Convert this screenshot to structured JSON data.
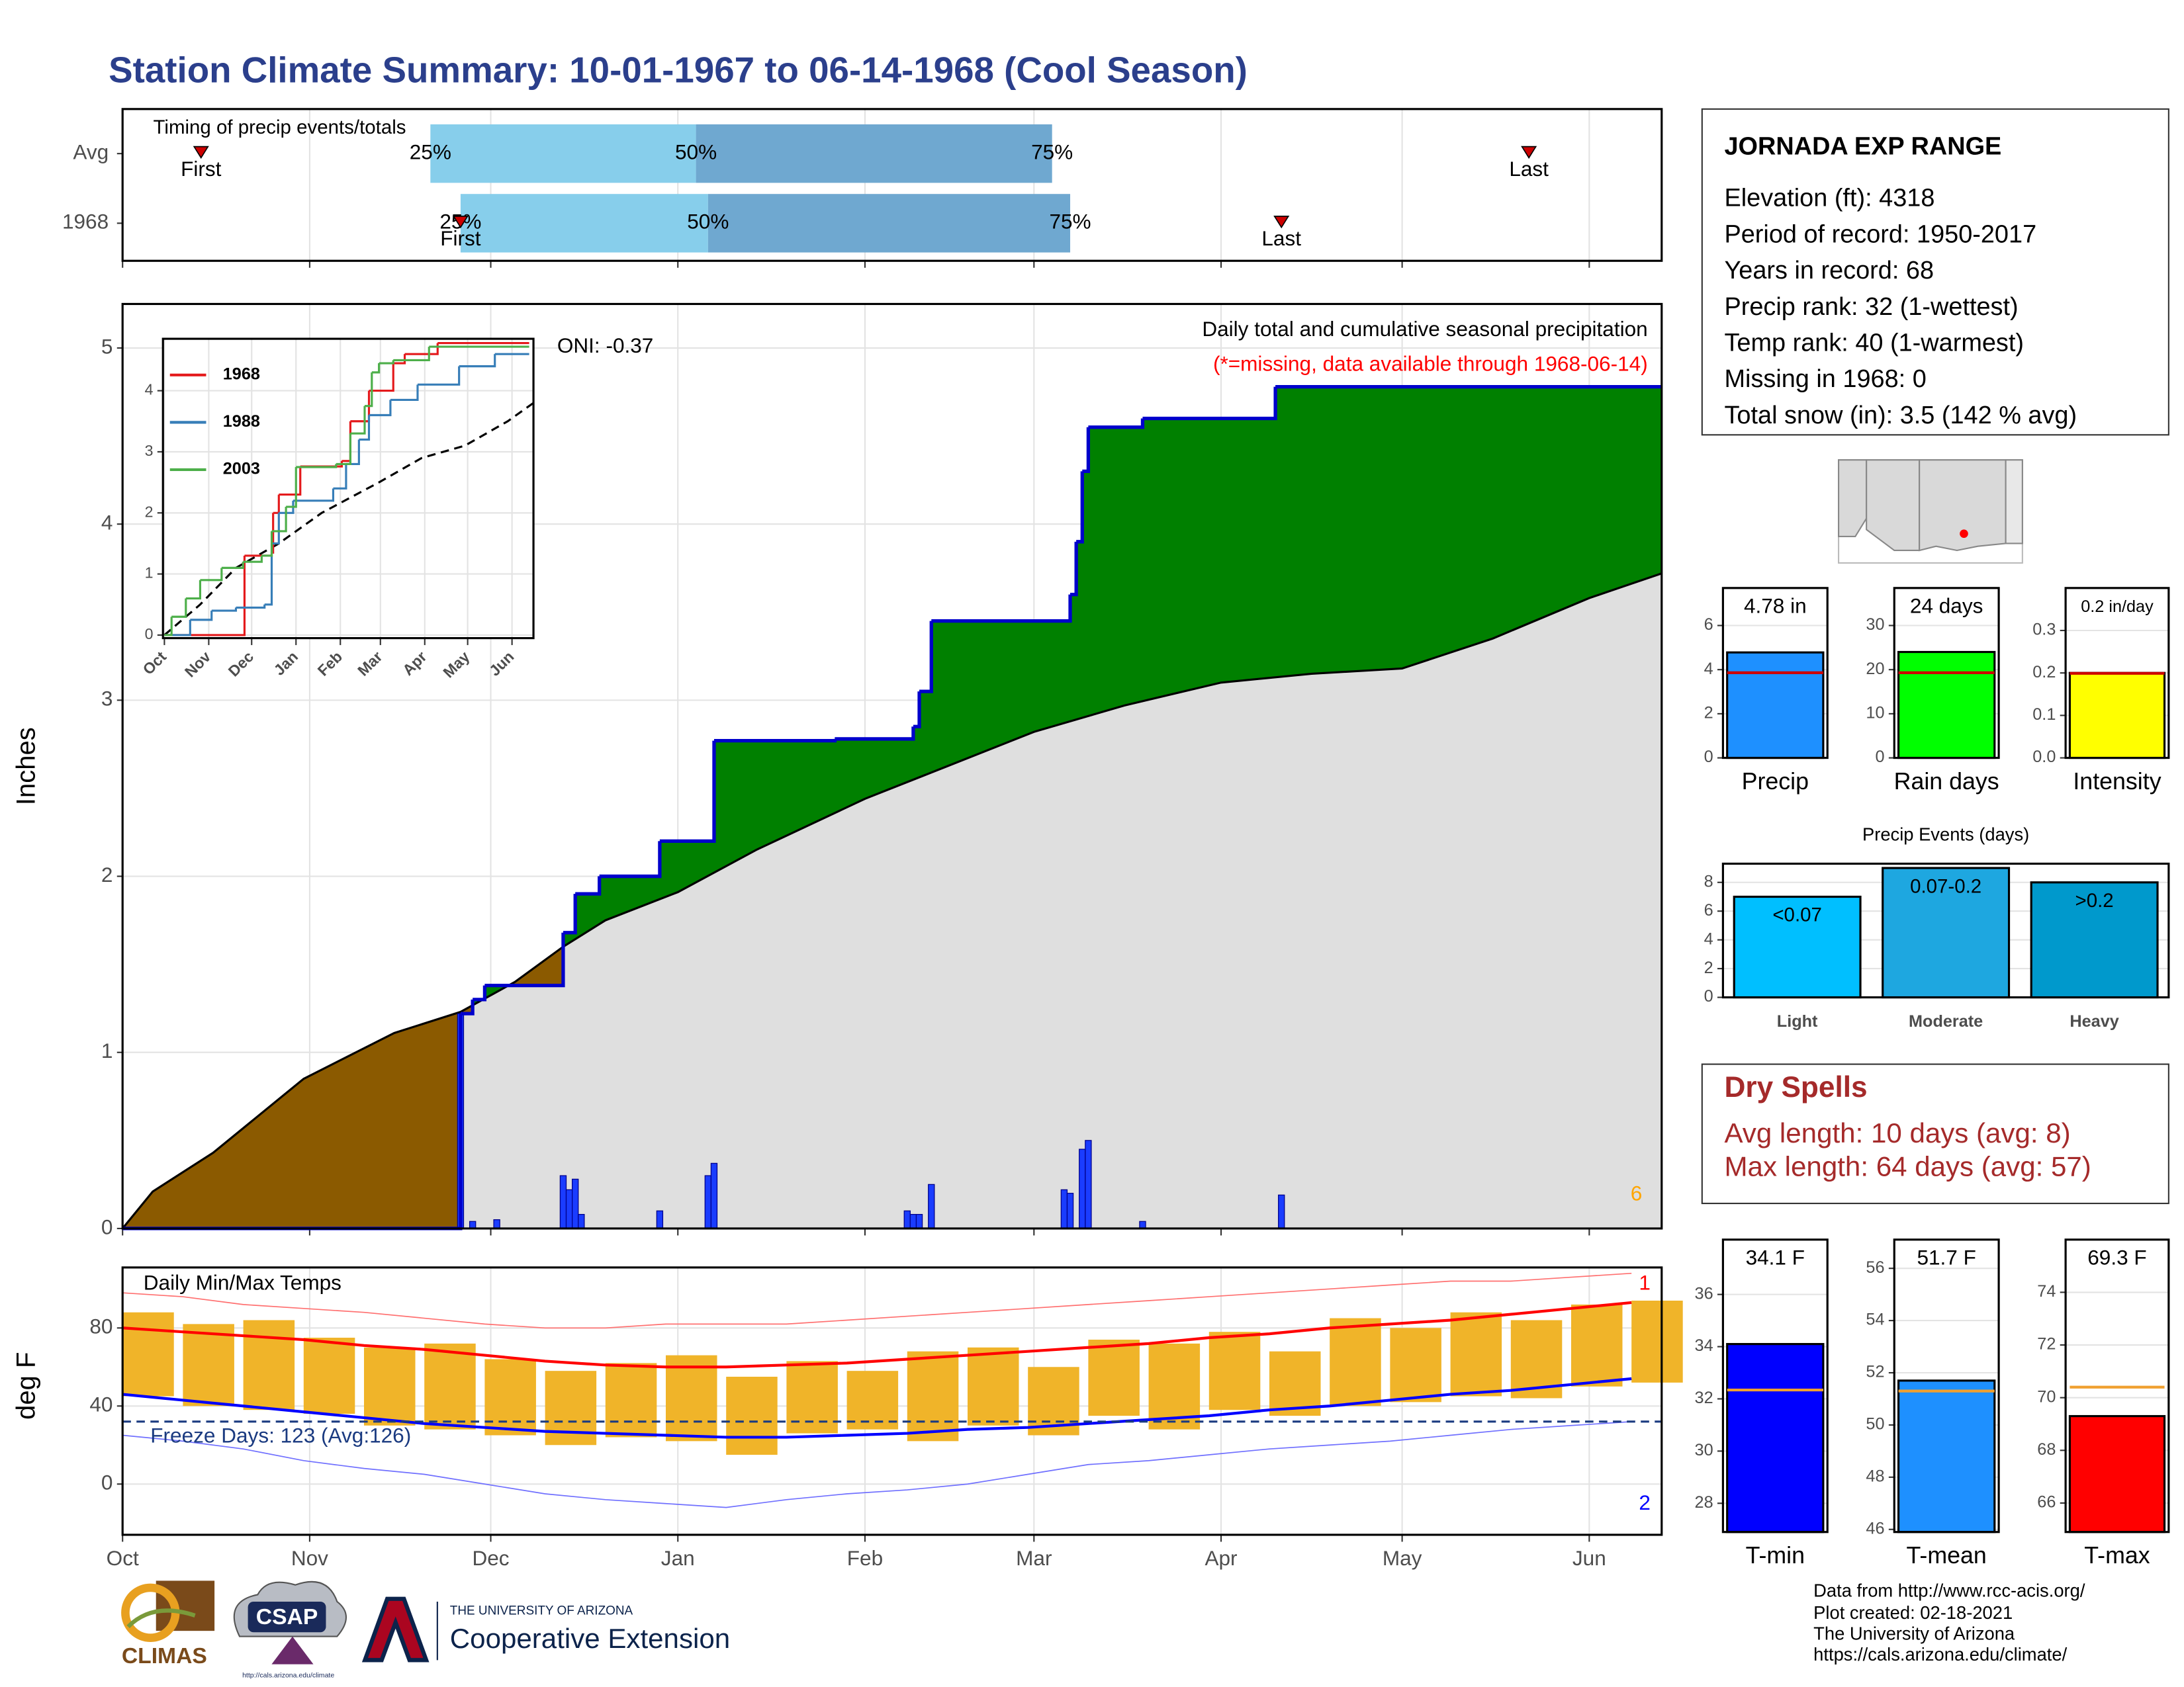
{
  "title": "Station Climate Summary: 10-01-1967 to 06-14-1968 (Cool Season)",
  "station": {
    "name": "JORNADA EXP RANGE",
    "lines": [
      "Elevation (ft): 4318",
      "Period of record: 1950-2017",
      "Years in record: 68",
      "Precip rank: 32 (1-wettest)",
      "Temp rank: 40 (1-warmest)",
      "Missing in 1968: 0",
      "Total snow (in): 3.5 (142 % avg)"
    ]
  },
  "dry_spells": {
    "title": "Dry Spells",
    "lines": [
      "Avg length: 10 days (avg: 8)",
      "Max length: 64 days (avg: 57)"
    ]
  },
  "footer": [
    "Data from http://www.rcc-acis.org/",
    "Plot created: 02-18-2021",
    "The University of Arizona",
    "https://cals.arizona.edu/climate/"
  ],
  "logos": {
    "climas": "CLIMAS",
    "csap": "CSAP",
    "csap_url": "http://cals.arizona.edu/climate",
    "university": "THE UNIVERSITY OF ARIZONA",
    "extension": "Cooperative Extension"
  },
  "chart_data": [
    {
      "type": "timing",
      "title": "Timing of precip events/totals",
      "xlim": [
        0,
        255
      ],
      "rows": [
        {
          "name": "Avg",
          "first": 13,
          "quartiles": [
            51,
            95,
            154
          ],
          "last": 233
        },
        {
          "name": "1968",
          "first": 56,
          "quartiles": [
            56,
            97,
            157
          ],
          "last": 192
        }
      ],
      "quartile_labels": [
        "25%",
        "50%",
        "75%"
      ],
      "first_label": "First",
      "last_label": "Last",
      "colors": [
        "#87ceeb",
        "#6fa8d0"
      ],
      "marker_color": "#cc0000"
    },
    {
      "type": "cumulative",
      "title": "Daily total and cumulative seasonal precipitation",
      "subtitle": "(*=missing, data available through 1968-06-14)",
      "annotation": "ONI: -0.37",
      "count_label": "6",
      "ylabel": "Inches",
      "xlim": [
        0,
        255
      ],
      "ylim": [
        0,
        5.25
      ],
      "yticks": [
        0,
        1,
        2,
        3,
        4,
        5
      ],
      "grid": true,
      "average": {
        "x": [
          0,
          5,
          15,
          30,
          45,
          56,
          65,
          73,
          80,
          92,
          105,
          123,
          137,
          151,
          166,
          182,
          197,
          212,
          227,
          243,
          255
        ],
        "values": [
          0,
          0.21,
          0.43,
          0.85,
          1.11,
          1.23,
          1.4,
          1.6,
          1.75,
          1.91,
          2.15,
          2.44,
          2.63,
          2.82,
          2.97,
          3.1,
          3.15,
          3.18,
          3.35,
          3.58,
          3.72
        ],
        "color": "#dfdfdf"
      },
      "observed": {
        "x": [
          0,
          56,
          58,
          60,
          73,
          75,
          79,
          89,
          98,
          118,
          131,
          132,
          134,
          157,
          158,
          159,
          160,
          169,
          191,
          255
        ],
        "values": [
          0,
          1.22,
          1.3,
          1.38,
          1.68,
          1.9,
          2.0,
          2.2,
          2.77,
          2.78,
          2.85,
          3.05,
          3.45,
          3.6,
          3.9,
          4.3,
          4.55,
          4.6,
          4.78,
          4.78
        ],
        "color": "#0000cc"
      },
      "daily": {
        "x": [
          56,
          58,
          62,
          73,
          74,
          75,
          76,
          89,
          97,
          98,
          130,
          131,
          132,
          134,
          156,
          157,
          159,
          160,
          169,
          192
        ],
        "values": [
          1.22,
          0.04,
          0.05,
          0.3,
          0.22,
          0.28,
          0.08,
          0.1,
          0.3,
          0.37,
          0.1,
          0.08,
          0.08,
          0.25,
          0.22,
          0.2,
          0.45,
          0.5,
          0.04,
          0.19
        ],
        "color": "#1a3cff"
      },
      "above_color": "#008000",
      "below_color": "#8b5a00"
    },
    {
      "type": "line",
      "xlim": [
        -1,
        258
      ],
      "ylim": [
        -0.05,
        4.85
      ],
      "yticks": [
        0,
        1,
        2,
        3,
        4
      ],
      "xticks": [
        {
          "value": 0,
          "label": "Oct"
        },
        {
          "value": 31,
          "label": "Nov"
        },
        {
          "value": 61,
          "label": "Dec"
        },
        {
          "value": 92,
          "label": "Jan"
        },
        {
          "value": 123,
          "label": "Feb"
        },
        {
          "value": 151,
          "label": "Mar"
        },
        {
          "value": 182,
          "label": "Apr"
        },
        {
          "value": 212,
          "label": "May"
        },
        {
          "value": 243,
          "label": "Jun"
        }
      ],
      "series": [
        {
          "name": "1968",
          "color": "#e41a1c",
          "x": [
            0,
            56,
            75,
            76,
            80,
            95,
            124,
            130,
            143,
            160,
            168,
            191,
            255
          ],
          "values": [
            0,
            1.3,
            1.35,
            2.0,
            2.3,
            2.76,
            2.85,
            3.5,
            4.0,
            4.45,
            4.6,
            4.78,
            4.78
          ]
        },
        {
          "name": "1988",
          "color": "#377eb8",
          "x": [
            0,
            18,
            33,
            50,
            70,
            75,
            80,
            90,
            118,
            127,
            136,
            143,
            158,
            177,
            206,
            231,
            255
          ],
          "values": [
            0,
            0.25,
            0.4,
            0.45,
            0.5,
            1.5,
            2.0,
            2.2,
            2.4,
            2.8,
            3.2,
            3.6,
            3.85,
            4.1,
            4.4,
            4.6,
            4.6
          ]
        },
        {
          "name": "2003",
          "color": "#4daf4a",
          "x": [
            0,
            5,
            15,
            25,
            40,
            55,
            68,
            75,
            85,
            92,
            120,
            130,
            140,
            145,
            150,
            160,
            185,
            255
          ],
          "values": [
            0,
            0.3,
            0.6,
            0.9,
            1.1,
            1.2,
            1.3,
            1.7,
            2.1,
            2.75,
            2.8,
            3.3,
            3.75,
            4.3,
            4.45,
            4.5,
            4.72,
            4.72
          ]
        }
      ],
      "average": {
        "x": [
          0,
          25,
          50,
          80,
          110,
          150,
          180,
          210,
          240,
          258
        ],
        "values": [
          0,
          0.5,
          1.1,
          1.5,
          2.0,
          2.5,
          2.9,
          3.1,
          3.5,
          3.8
        ],
        "color": "#000000"
      }
    },
    {
      "type": "temps",
      "title": "Daily Min/Max Temps",
      "annotation": "Freeze Days: 123 (Avg:126)",
      "ylabel": "deg F",
      "xlim": [
        0,
        255
      ],
      "ylim": [
        -26,
        111
      ],
      "yticks": [
        0,
        40,
        80
      ],
      "xticks": [
        {
          "value": 0,
          "label": "Oct"
        },
        {
          "value": 31,
          "label": "Nov"
        },
        {
          "value": 61,
          "label": "Dec"
        },
        {
          "value": 92,
          "label": "Jan"
        },
        {
          "value": 123,
          "label": "Feb"
        },
        {
          "value": 151,
          "label": "Mar"
        },
        {
          "value": 182,
          "label": "Apr"
        },
        {
          "value": 212,
          "label": "May"
        },
        {
          "value": 243,
          "label": "Jun"
        }
      ],
      "x": [
        0,
        10,
        20,
        30,
        40,
        50,
        60,
        70,
        80,
        90,
        100,
        110,
        120,
        130,
        140,
        150,
        160,
        170,
        180,
        190,
        200,
        210,
        220,
        230,
        240,
        250
      ],
      "high": [
        88,
        82,
        84,
        75,
        70,
        72,
        64,
        58,
        62,
        66,
        55,
        63,
        58,
        68,
        70,
        60,
        74,
        72,
        78,
        68,
        85,
        80,
        88,
        84,
        92,
        94
      ],
      "low": [
        45,
        40,
        38,
        36,
        30,
        28,
        25,
        20,
        24,
        22,
        15,
        26,
        28,
        22,
        30,
        25,
        35,
        28,
        38,
        35,
        40,
        42,
        45,
        44,
        50,
        52
      ],
      "avg_high": [
        80,
        78,
        76,
        74,
        71,
        69,
        66,
        63,
        61,
        60,
        60,
        61,
        62,
        64,
        66,
        68,
        70,
        72,
        75,
        77,
        80,
        82,
        84,
        87,
        90,
        93
      ],
      "avg_low": [
        46,
        43,
        40,
        37,
        34,
        31,
        29,
        27,
        26,
        25,
        24,
        24,
        25,
        26,
        28,
        29,
        31,
        33,
        35,
        38,
        40,
        43,
        46,
        48,
        51,
        54
      ],
      "record_high": [
        98,
        96,
        92,
        90,
        88,
        85,
        82,
        80,
        80,
        82,
        82,
        82,
        84,
        86,
        88,
        90,
        92,
        94,
        96,
        98,
        100,
        102,
        104,
        104,
        106,
        108
      ],
      "record_low": [
        25,
        22,
        18,
        12,
        8,
        5,
        0,
        -5,
        -8,
        -10,
        -12,
        -8,
        -5,
        -3,
        0,
        5,
        10,
        12,
        15,
        18,
        20,
        22,
        25,
        28,
        30,
        32
      ],
      "freeze": 32,
      "record_high_label": "1",
      "record_low_label": "2",
      "colors": {
        "bars": "#f0b429",
        "avg_high": "#ff0000",
        "avg_low": "#0000ff",
        "record_high": "#ff7070",
        "record_low": "#7070ff",
        "freeze": "#1a3a80"
      }
    },
    {
      "type": "bar",
      "categories": [
        "Precip"
      ],
      "values": [
        4.78
      ],
      "value_labels": [
        "4.78 in"
      ],
      "average": 3.86,
      "average_color": "#cc0000",
      "color": "#1e90ff",
      "ylim": [
        0,
        7.7
      ],
      "yticks": [
        0,
        2,
        4,
        6
      ]
    },
    {
      "type": "bar",
      "categories": [
        "Rain days"
      ],
      "values": [
        24
      ],
      "value_labels": [
        "24 days"
      ],
      "average": 19.3,
      "average_color": "#cc0000",
      "color": "#00ff00",
      "ylim": [
        0,
        38.5
      ],
      "yticks": [
        0,
        10,
        20,
        30
      ]
    },
    {
      "type": "bar",
      "categories": [
        "Intensity"
      ],
      "values": [
        0.2
      ],
      "value_labels": [
        "0.2 in/day"
      ],
      "average": 0.199,
      "average_color": "#cc0000",
      "color": "#ffff00",
      "ylim": [
        0,
        0.4
      ],
      "yticks": [
        {
          "value": 0,
          "label": "0.0"
        },
        0.1,
        0.2,
        0.3
      ]
    },
    {
      "type": "bar",
      "title": "Precip Events (days)",
      "categories": [
        "Light",
        "Moderate",
        "Heavy"
      ],
      "values": [
        7,
        9,
        8
      ],
      "ranges": [
        "<0.07",
        "0.07-0.2",
        ">0.2"
      ],
      "colors": [
        "#00bfff",
        "#1ea7e0",
        "#0099cc"
      ],
      "ylim": [
        0,
        9.3
      ],
      "yticks": [
        0,
        2,
        4,
        6,
        8
      ]
    },
    {
      "type": "bar",
      "categories": [
        "T-min"
      ],
      "values": [
        34.1
      ],
      "value_labels": [
        "34.1 F"
      ],
      "average": 32.34,
      "average_color": "#f0a030",
      "color": "#0000ff",
      "ylim": [
        26.9,
        38.1
      ],
      "yticks": [
        28,
        30,
        32,
        34,
        36
      ]
    },
    {
      "type": "bar",
      "categories": [
        "T-mean"
      ],
      "values": [
        51.7
      ],
      "value_labels": [
        "51.7 F"
      ],
      "average": 51.3,
      "average_color": "#f0a030",
      "color": "#1e90ff",
      "ylim": [
        45.9,
        57.1
      ],
      "yticks": [
        46,
        48,
        50,
        52,
        54,
        56
      ]
    },
    {
      "type": "bar",
      "categories": [
        "T-max"
      ],
      "values": [
        69.3
      ],
      "value_labels": [
        "69.3 F"
      ],
      "average": 70.4,
      "average_color": "#f0a030",
      "color": "#ff0000",
      "ylim": [
        64.9,
        76
      ],
      "yticks": [
        66,
        68,
        70,
        72,
        74
      ]
    }
  ]
}
